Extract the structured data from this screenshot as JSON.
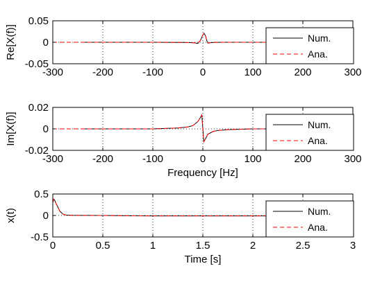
{
  "chart_data": [
    {
      "type": "line",
      "ylabel": "Re[X(f)]",
      "xlabel": "",
      "xlim": [
        -300,
        300
      ],
      "ylim": [
        -0.05,
        0.05
      ],
      "xticks": [
        "-300",
        "-200",
        "-100",
        "0",
        "100",
        "200",
        "300"
      ],
      "yticks": [
        "0.05",
        "0",
        "-0.05"
      ],
      "grid": "dotted",
      "legend": {
        "location": "right",
        "entries": [
          "Num.",
          "Ana."
        ]
      },
      "series": [
        {
          "name": "Num.",
          "color": "#000000",
          "style": "solid",
          "x": [
            -243,
            -100,
            -40,
            -20,
            -10,
            -5,
            0,
            2,
            5,
            8,
            10,
            15,
            20,
            40,
            100,
            243
          ],
          "y": [
            0,
            0,
            -0.0005,
            -0.001,
            -0.0025,
            0.004,
            0.017,
            0.021,
            0.016,
            0.004,
            -0.002,
            -0.001,
            -0.0005,
            0,
            0,
            0
          ]
        },
        {
          "name": "Ana.",
          "color": "#ff0000",
          "style": "dashed",
          "x": [
            -300,
            -100,
            -40,
            -20,
            -10,
            -5,
            0,
            2,
            5,
            8,
            10,
            15,
            20,
            40,
            100,
            300
          ],
          "y": [
            0,
            0,
            -0.0005,
            -0.001,
            -0.0025,
            0.004,
            0.017,
            0.021,
            0.016,
            0.004,
            -0.002,
            -0.001,
            -0.0005,
            0,
            0,
            0
          ]
        }
      ]
    },
    {
      "type": "line",
      "ylabel": "Im[X(f)]",
      "xlabel": "Frequency [Hz]",
      "xlim": [
        -300,
        300
      ],
      "ylim": [
        -0.02,
        0.02
      ],
      "xticks": [
        "-300",
        "-200",
        "-100",
        "0",
        "100",
        "200",
        "300"
      ],
      "yticks": [
        "0.02",
        "0",
        "-0.02"
      ],
      "grid": "dotted",
      "legend": {
        "location": "right",
        "entries": [
          "Num.",
          "Ana."
        ]
      },
      "series": [
        {
          "name": "Num.",
          "color": "#000000",
          "style": "solid",
          "x": [
            -243,
            -100,
            -50,
            -30,
            -20,
            -10,
            -5,
            -2,
            0,
            2,
            5,
            10,
            20,
            30,
            50,
            100,
            243
          ],
          "y": [
            0,
            0,
            0.0008,
            0.0018,
            0.003,
            0.0068,
            0.0105,
            0.013,
            0,
            -0.012,
            -0.0095,
            -0.005,
            -0.0025,
            -0.0015,
            -0.0007,
            0,
            0
          ]
        },
        {
          "name": "Ana.",
          "color": "#ff0000",
          "style": "dashed",
          "x": [
            -300,
            -100,
            -50,
            -30,
            -20,
            -10,
            -5,
            -2,
            0,
            2,
            5,
            10,
            20,
            30,
            50,
            100,
            300
          ],
          "y": [
            0,
            0,
            0.0008,
            0.0018,
            0.003,
            0.0068,
            0.0105,
            0.013,
            0,
            -0.012,
            -0.0095,
            -0.005,
            -0.0025,
            -0.0015,
            -0.0007,
            0,
            0
          ]
        }
      ]
    },
    {
      "type": "line",
      "ylabel": "x(t)",
      "xlabel": "Time [s]",
      "xlim": [
        0,
        3
      ],
      "ylim": [
        -0.5,
        0.5
      ],
      "xticks": [
        "0",
        "0.5",
        "1",
        "1.5",
        "2",
        "2.5",
        "3"
      ],
      "yticks": [
        "0.5",
        "0",
        "-0.5"
      ],
      "grid": "dotted",
      "legend": {
        "location": "right",
        "entries": [
          "Num.",
          "Ana."
        ]
      },
      "series": [
        {
          "name": "Num.",
          "color": "#000000",
          "style": "solid",
          "x": [
            0,
            0.01,
            0.02,
            0.03,
            0.05,
            0.07,
            0.1,
            0.13,
            0.2,
            0.3,
            0.5,
            0.8,
            1.0,
            2.0,
            2.99
          ],
          "y": [
            0.3,
            0.38,
            0.35,
            0.29,
            0.2,
            0.1,
            0.035,
            0.01,
            0.003,
            0.002,
            0,
            -0.008,
            -0.01,
            -0.01,
            -0.01
          ]
        },
        {
          "name": "Ana.",
          "color": "#ff0000",
          "style": "dashed",
          "x": [
            0,
            0.01,
            0.02,
            0.03,
            0.05,
            0.07,
            0.1,
            0.13,
            0.2,
            0.3,
            0.5,
            0.8,
            1.0,
            2.0,
            2.99
          ],
          "y": [
            0.3,
            0.38,
            0.35,
            0.29,
            0.2,
            0.1,
            0.035,
            0.01,
            0.003,
            0.002,
            0,
            -0.008,
            -0.01,
            -0.01,
            -0.01
          ]
        }
      ]
    }
  ]
}
